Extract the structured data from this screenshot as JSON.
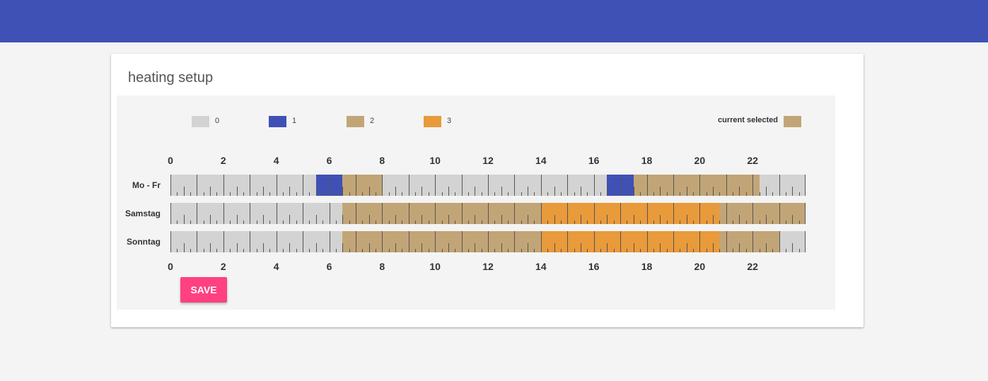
{
  "app": {
    "card_title": "heating setup",
    "appbar_color": "#3f51b5"
  },
  "legend": {
    "levels": [
      {
        "label": "0",
        "color": "#d3d3d3"
      },
      {
        "label": "1",
        "color": "#3f51b5"
      },
      {
        "label": "2",
        "color": "#c2a577"
      },
      {
        "label": "3",
        "color": "#e99a3b"
      }
    ],
    "current_selected_label": "current selected",
    "current_selected_level": 2
  },
  "hour_labels": [
    "0",
    "2",
    "4",
    "6",
    "8",
    "10",
    "12",
    "14",
    "16",
    "18",
    "20",
    "22"
  ],
  "schedule": [
    {
      "day": "Mo - Fr",
      "segments": [
        {
          "start": 0,
          "end": 5.5,
          "level": 0
        },
        {
          "start": 5.5,
          "end": 6.5,
          "level": 1
        },
        {
          "start": 6.5,
          "end": 8,
          "level": 2
        },
        {
          "start": 8,
          "end": 16.5,
          "level": 0
        },
        {
          "start": 16.5,
          "end": 17.5,
          "level": 1
        },
        {
          "start": 17.5,
          "end": 22.25,
          "level": 2
        },
        {
          "start": 22.25,
          "end": 24,
          "level": 0
        }
      ]
    },
    {
      "day": "Samstag",
      "segments": [
        {
          "start": 0,
          "end": 6.5,
          "level": 0
        },
        {
          "start": 6.5,
          "end": 14,
          "level": 2
        },
        {
          "start": 14,
          "end": 20.75,
          "level": 3
        },
        {
          "start": 20.75,
          "end": 24,
          "level": 2
        }
      ]
    },
    {
      "day": "Sonntag",
      "segments": [
        {
          "start": 0,
          "end": 6.5,
          "level": 0
        },
        {
          "start": 6.5,
          "end": 14,
          "level": 2
        },
        {
          "start": 14,
          "end": 20.75,
          "level": 3
        },
        {
          "start": 20.75,
          "end": 23,
          "level": 2
        },
        {
          "start": 23,
          "end": 24,
          "level": 0
        }
      ]
    }
  ],
  "actions": {
    "save_label": "SAVE",
    "save_color": "#ff4081"
  }
}
